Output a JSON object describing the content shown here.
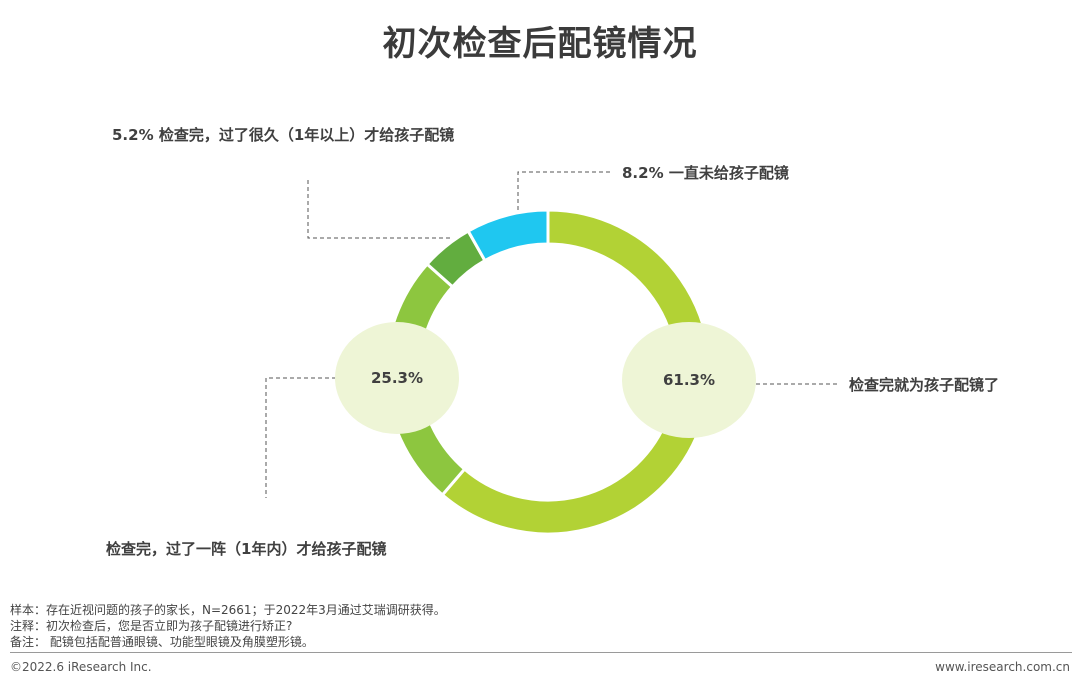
{
  "title": "初次检查后配镜情况",
  "chart_data": {
    "type": "pie",
    "title": "初次检查后配镜情况",
    "slices": [
      {
        "label": "检查完就为孩子配镜了",
        "value": 61.3,
        "color": "#b2d235"
      },
      {
        "label": "检查完，过了一阵（1年内）才给孩子配镜",
        "value": 25.3,
        "color": "#8dc63f"
      },
      {
        "label": "检查完，过了很久（1年以上）才给孩子配镜",
        "value": 5.2,
        "color": "#62ad3f"
      },
      {
        "label": "一直未给孩子配镜",
        "value": 8.2,
        "color": "#1fc7f0"
      }
    ],
    "data_labels": {
      "s0": "61.3%",
      "s1": "25.3%",
      "s2": "5.2%",
      "s3": "8.2%"
    },
    "bubble_color": "#eef5d6"
  },
  "labels": {
    "s0": "检查完就为孩子配镜了",
    "s1": "检查完，过了一阵（1年内）才给孩子配镜",
    "s2": "5.2% 检查完，过了很久（1年以上）才给孩子配镜",
    "s3": "8.2% 一直未给孩子配镜"
  },
  "notes": {
    "sample": "样本：存在近视问题的孩子的家长，N=2661；于2022年3月通过艾瑞调研获得。",
    "annotation": "注释：初次检查后，您是否立即为孩子配镜进行矫正?",
    "remark": "备注：   配镜包括配普通眼镜、功能型眼镜及角膜塑形镜。"
  },
  "footer": {
    "copyright": "©2022.6 iResearch Inc.",
    "website": "www.iresearch.com.cn"
  }
}
